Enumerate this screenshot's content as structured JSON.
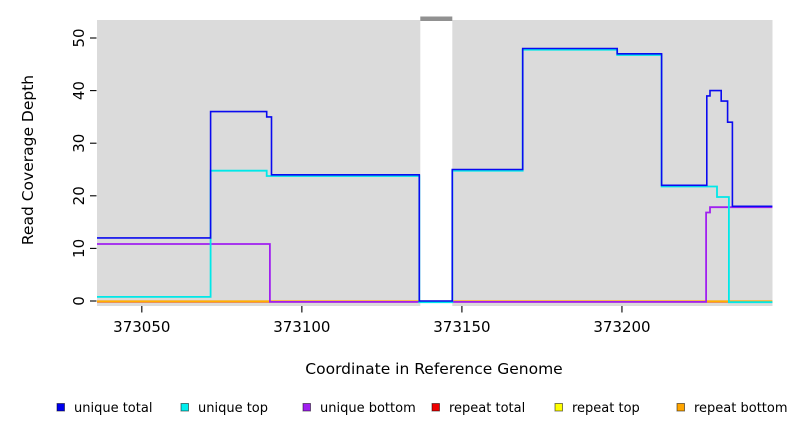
{
  "axes": {
    "x_title": "Coordinate in Reference Genome",
    "y_title": "Read Coverage Depth",
    "x_ticks": [
      {
        "label": "373050",
        "coord": 373050
      },
      {
        "label": "373100",
        "coord": 373100
      },
      {
        "label": "373150",
        "coord": 373150
      },
      {
        "label": "373200",
        "coord": 373200
      }
    ],
    "y_ticks": [
      {
        "label": "0",
        "value": 0
      },
      {
        "label": "10",
        "value": 10
      },
      {
        "label": "20",
        "value": 20
      },
      {
        "label": "30",
        "value": 30
      },
      {
        "label": "40",
        "value": 40
      },
      {
        "label": "50",
        "value": 50
      }
    ]
  },
  "legend": {
    "items": [
      {
        "label": "unique total",
        "color": "#0000EE"
      },
      {
        "label": "unique top",
        "color": "#00EEEE"
      },
      {
        "label": "unique bottom",
        "color": "#A020F0"
      },
      {
        "label": "repeat total",
        "color": "#EE0000"
      },
      {
        "label": "repeat top",
        "color": "#FFFF00"
      },
      {
        "label": "repeat bottom",
        "color": "#FFA500"
      }
    ]
  },
  "panel": {
    "background": "#DBDBDB",
    "gap_band_color": "#FFFFFF",
    "gap_band_cap_color": "#919191"
  },
  "chart_data": {
    "type": "line",
    "subtype": "step",
    "title": "",
    "xlabel": "Coordinate in Reference Genome",
    "ylabel": "Read Coverage Depth",
    "xlim": [
      373036,
      373247
    ],
    "ylim": [
      0,
      53
    ],
    "grid": false,
    "legend_position": "bottom",
    "gap_region": {
      "start": 373137,
      "end": 373147
    },
    "x_end": 373247,
    "series": [
      {
        "name": "repeat total",
        "color": "#EE0000",
        "points": [
          [
            373036,
            0
          ]
        ]
      },
      {
        "name": "repeat top",
        "color": "#FFFF00",
        "points": [
          [
            373036,
            0
          ]
        ]
      },
      {
        "name": "repeat bottom",
        "color": "#FFA500",
        "points": [
          [
            373036,
            0
          ]
        ]
      },
      {
        "name": "unique bottom",
        "color": "#A020F0",
        "points": [
          [
            373036,
            11
          ],
          [
            373090,
            0
          ],
          [
            373226.3,
            17
          ],
          [
            373227.5,
            18
          ]
        ]
      },
      {
        "name": "unique top",
        "color": "#00E8E8",
        "points": [
          [
            373036,
            1
          ],
          [
            373071.5,
            25
          ],
          [
            373089,
            24
          ],
          [
            373136.7,
            0
          ],
          [
            373147,
            25
          ],
          [
            373169,
            48
          ],
          [
            373198.5,
            47
          ],
          [
            373212.4,
            22
          ],
          [
            373229.7,
            20
          ],
          [
            373233.4,
            0
          ]
        ]
      },
      {
        "name": "unique total",
        "color": "#0A0AF0",
        "points": [
          [
            373036,
            12
          ],
          [
            373071.5,
            36
          ],
          [
            373089,
            35
          ],
          [
            373090.5,
            24
          ],
          [
            373136.7,
            0
          ],
          [
            373147,
            25
          ],
          [
            373169,
            48
          ],
          [
            373198.5,
            47
          ],
          [
            373212.4,
            22
          ],
          [
            373226.5,
            39
          ],
          [
            373227.5,
            40
          ],
          [
            373231,
            38
          ],
          [
            373233,
            34
          ],
          [
            373234.5,
            18
          ]
        ]
      }
    ]
  }
}
